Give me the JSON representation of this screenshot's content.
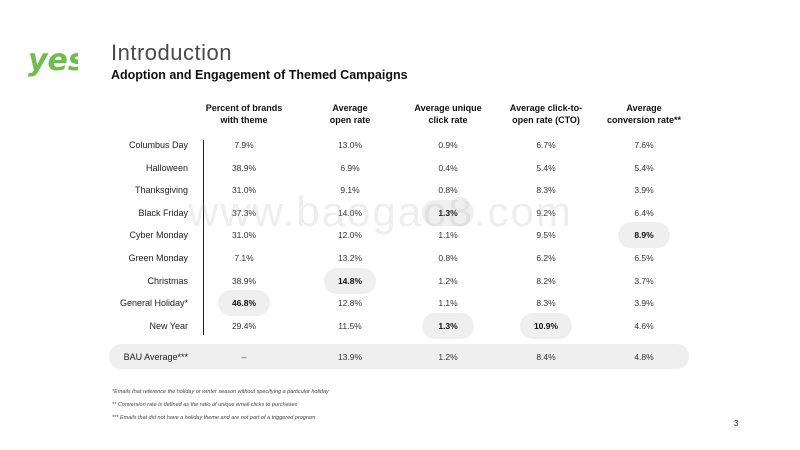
{
  "brand": {
    "logo_text": "yes",
    "color": "#6cc04a"
  },
  "title": "Introduction",
  "subtitle": "Adoption and Engagement of Themed Campaigns",
  "columns": [
    [
      "Percent of brands",
      "with theme"
    ],
    [
      "Average",
      "open rate"
    ],
    [
      "Average unique",
      "click rate"
    ],
    [
      "Average click-to-",
      "open rate (CTO)"
    ],
    [
      "Average",
      "conversion rate**"
    ]
  ],
  "rows": [
    {
      "label": "Columbus Day",
      "values": [
        "7.9%",
        "13.0%",
        "0.9%",
        "6.7%",
        "7.6%"
      ],
      "highlight": []
    },
    {
      "label": "Halloween",
      "values": [
        "38.9%",
        "6.9%",
        "0.4%",
        "5.4%",
        "5.4%"
      ],
      "highlight": []
    },
    {
      "label": "Thanksgiving",
      "values": [
        "31.0%",
        "9.1%",
        "0.8%",
        "8.3%",
        "3.9%"
      ],
      "highlight": []
    },
    {
      "label": "Black Friday",
      "values": [
        "37.3%",
        "14.0%",
        "1.3%",
        "9.2%",
        "6.4%"
      ],
      "highlight": [
        2
      ]
    },
    {
      "label": "Cyber Monday",
      "values": [
        "31.0%",
        "12.0%",
        "1.1%",
        "9.5%",
        "8.9%"
      ],
      "highlight": [
        4
      ]
    },
    {
      "label": "Green Monday",
      "values": [
        "7.1%",
        "13.2%",
        "0.8%",
        "6.2%",
        "6.5%"
      ],
      "highlight": []
    },
    {
      "label": "Christmas",
      "values": [
        "38.9%",
        "14.8%",
        "1.2%",
        "8.2%",
        "3.7%"
      ],
      "highlight": [
        1
      ]
    },
    {
      "label": "General Holiday*",
      "values": [
        "46.8%",
        "12.8%",
        "1.1%",
        "8.3%",
        "3.9%"
      ],
      "highlight": [
        0
      ]
    },
    {
      "label": "New Year",
      "values": [
        "29.4%",
        "11.5%",
        "1.3%",
        "10.9%",
        "4.6%"
      ],
      "highlight": [
        2,
        3
      ]
    }
  ],
  "bau": {
    "label": "BAU Average***",
    "values": [
      "–",
      "13.9%",
      "1.2%",
      "8.4%",
      "4.8%"
    ]
  },
  "footnotes": [
    "*Emails that reference the holiday or winter season without specifying a particular holiday",
    "** Conversion rate is defined as the ratio of unique email clicks to purchases",
    "*** Emails that did not have a holiday theme and are not part of a triggered program"
  ],
  "page_number": "3",
  "watermark": "www.baogao8.com"
}
